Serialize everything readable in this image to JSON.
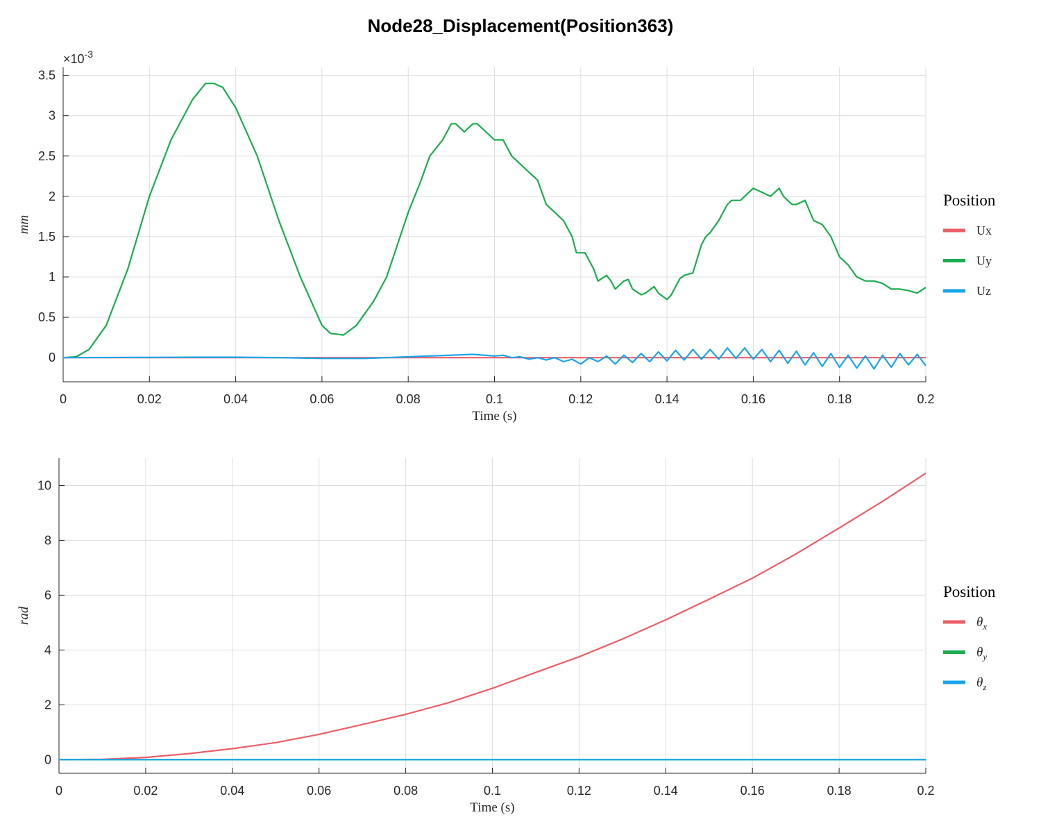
{
  "title": "Node28_Displacement(Position363)",
  "colors": {
    "x": "#ec5e66",
    "y": "#1aad4d",
    "z": "#17a5ec"
  },
  "chart_data": [
    {
      "type": "line",
      "xlabel": "Time (s)",
      "ylabel": "mm",
      "exponent_label": "×10",
      "exponent_power": "-3",
      "xlim": [
        0,
        0.2
      ],
      "ylim": [
        -0.0003,
        0.0036
      ],
      "xticks": [
        0,
        0.02,
        0.04,
        0.06,
        0.08,
        0.1,
        0.12,
        0.14,
        0.16,
        0.18,
        0.2
      ],
      "xtick_labels": [
        "0",
        "0.02",
        "0.04",
        "0.06",
        "0.08",
        "0.1",
        "0.12",
        "0.14",
        "0.16",
        "0.18",
        "0.2"
      ],
      "yticks": [
        0,
        0.0005,
        0.001,
        0.0015,
        0.002,
        0.0025,
        0.003,
        0.0035
      ],
      "ytick_labels": [
        "0",
        "0.5",
        "1",
        "1.5",
        "2",
        "2.5",
        "3",
        "3.5"
      ],
      "grid": true,
      "legend": {
        "title": "Position",
        "placement": "right"
      },
      "series": [
        {
          "name": "Ux",
          "color_key": "x",
          "x": [
            0,
            0.2
          ],
          "y": [
            0,
            0
          ]
        },
        {
          "name": "Uy",
          "color_key": "y",
          "x": [
            0,
            0.003,
            0.006,
            0.01,
            0.015,
            0.02,
            0.025,
            0.03,
            0.033,
            0.035,
            0.037,
            0.04,
            0.045,
            0.05,
            0.055,
            0.06,
            0.062,
            0.065,
            0.068,
            0.072,
            0.075,
            0.08,
            0.083,
            0.085,
            0.088,
            0.09,
            0.091,
            0.093,
            0.095,
            0.096,
            0.097,
            0.1,
            0.102,
            0.104,
            0.106,
            0.108,
            0.11,
            0.112,
            0.114,
            0.116,
            0.118,
            0.119,
            0.12,
            0.121,
            0.123,
            0.124,
            0.126,
            0.127,
            0.128,
            0.13,
            0.131,
            0.132,
            0.134,
            0.135,
            0.137,
            0.138,
            0.14,
            0.141,
            0.143,
            0.144,
            0.146,
            0.148,
            0.149,
            0.15,
            0.152,
            0.154,
            0.155,
            0.157,
            0.158,
            0.16,
            0.162,
            0.164,
            0.166,
            0.167,
            0.169,
            0.17,
            0.172,
            0.174,
            0.176,
            0.178,
            0.18,
            0.182,
            0.184,
            0.186,
            0.188,
            0.19,
            0.192,
            0.194,
            0.196,
            0.198,
            0.2
          ],
          "y": [
            0,
            1e-05,
            0.0001,
            0.0004,
            0.0011,
            0.002,
            0.0027,
            0.0032,
            0.0034,
            0.0034,
            0.00335,
            0.0031,
            0.0025,
            0.0017,
            0.001,
            0.0004,
            0.0003,
            0.00028,
            0.0004,
            0.0007,
            0.001,
            0.0018,
            0.0022,
            0.0025,
            0.0027,
            0.0029,
            0.0029,
            0.0028,
            0.0029,
            0.0029,
            0.00285,
            0.0027,
            0.0027,
            0.0025,
            0.0024,
            0.0023,
            0.0022,
            0.0019,
            0.0018,
            0.0017,
            0.0015,
            0.0013,
            0.0013,
            0.0013,
            0.0011,
            0.00095,
            0.00102,
            0.00095,
            0.00085,
            0.00095,
            0.00097,
            0.00085,
            0.00078,
            0.0008,
            0.00088,
            0.0008,
            0.00072,
            0.00078,
            0.00098,
            0.00102,
            0.00105,
            0.0014,
            0.0015,
            0.00155,
            0.0017,
            0.0019,
            0.00195,
            0.00195,
            0.002,
            0.0021,
            0.00205,
            0.002,
            0.0021,
            0.002,
            0.0019,
            0.0019,
            0.00195,
            0.0017,
            0.00165,
            0.0015,
            0.00125,
            0.00115,
            0.001,
            0.00095,
            0.00095,
            0.00092,
            0.00085,
            0.00085,
            0.00083,
            0.0008,
            0.00087
          ]
        },
        {
          "name": "Uz",
          "color_key": "z",
          "x": [
            0,
            0.03,
            0.04,
            0.05,
            0.06,
            0.065,
            0.07,
            0.075,
            0.08,
            0.085,
            0.09,
            0.095,
            0.1,
            0.102,
            0.104,
            0.106,
            0.108,
            0.11,
            0.112,
            0.114,
            0.116,
            0.118,
            0.12,
            0.122,
            0.124,
            0.126,
            0.128,
            0.13,
            0.132,
            0.134,
            0.136,
            0.138,
            0.14,
            0.142,
            0.144,
            0.146,
            0.148,
            0.15,
            0.152,
            0.154,
            0.156,
            0.158,
            0.16,
            0.162,
            0.164,
            0.166,
            0.168,
            0.17,
            0.172,
            0.174,
            0.176,
            0.178,
            0.18,
            0.182,
            0.184,
            0.186,
            0.188,
            0.19,
            0.192,
            0.194,
            0.196,
            0.198,
            0.2
          ],
          "y": [
            0,
            5e-06,
            5e-06,
            0,
            -1e-05,
            -1e-05,
            -1e-05,
            0,
            1e-05,
            2e-05,
            3e-05,
            4e-05,
            2e-05,
            3e-05,
            0,
            1e-05,
            -2e-05,
            0,
            -3e-05,
            0,
            -5e-05,
            -2e-05,
            -8e-05,
            0,
            -5e-05,
            2e-05,
            -8e-05,
            3e-05,
            -6e-05,
            5e-05,
            -5e-05,
            7e-05,
            -4e-05,
            9e-05,
            -3e-05,
            0.0001,
            -2e-05,
            0.0001,
            -2e-05,
            0.00012,
            -1e-05,
            0.00012,
            -2e-05,
            0.0001,
            -5e-05,
            9e-05,
            -7e-05,
            8e-05,
            -9e-05,
            6e-05,
            -0.00011,
            5e-05,
            -0.00012,
            3e-05,
            -0.00013,
            2e-05,
            -0.00014,
            3e-05,
            -0.00012,
            5e-05,
            -9e-05,
            4e-05,
            -0.0001
          ]
        }
      ]
    },
    {
      "type": "line",
      "xlabel": "Time (s)",
      "ylabel": "rad",
      "xlim": [
        0,
        0.2
      ],
      "ylim": [
        -0.5,
        11
      ],
      "xticks": [
        0,
        0.02,
        0.04,
        0.06,
        0.08,
        0.1,
        0.12,
        0.14,
        0.16,
        0.18,
        0.2
      ],
      "xtick_labels": [
        "0",
        "0.02",
        "0.04",
        "0.06",
        "0.08",
        "0.1",
        "0.12",
        "0.14",
        "0.16",
        "0.18",
        "0.2"
      ],
      "yticks": [
        0,
        2,
        4,
        6,
        8,
        10
      ],
      "ytick_labels": [
        "0",
        "2",
        "4",
        "6",
        "8",
        "10"
      ],
      "grid": true,
      "legend": {
        "title": "Position",
        "placement": "right"
      },
      "series": [
        {
          "name": "θx",
          "base": "θ",
          "sub": "x",
          "color_key": "x",
          "x": [
            0,
            0.01,
            0.02,
            0.03,
            0.04,
            0.05,
            0.06,
            0.07,
            0.08,
            0.09,
            0.1,
            0.11,
            0.12,
            0.13,
            0.14,
            0.15,
            0.16,
            0.17,
            0.18,
            0.19,
            0.2
          ],
          "y": [
            0,
            0.01,
            0.08,
            0.22,
            0.4,
            0.62,
            0.92,
            1.28,
            1.65,
            2.08,
            2.6,
            3.18,
            3.75,
            4.4,
            5.1,
            5.85,
            6.62,
            7.5,
            8.45,
            9.42,
            10.45
          ]
        },
        {
          "name": "θy",
          "base": "θ",
          "sub": "y",
          "color_key": "y",
          "x": [
            0,
            0.2
          ],
          "y": [
            0,
            0
          ]
        },
        {
          "name": "θz",
          "base": "θ",
          "sub": "z",
          "color_key": "z",
          "x": [
            0,
            0.2
          ],
          "y": [
            0,
            0
          ]
        }
      ]
    }
  ]
}
